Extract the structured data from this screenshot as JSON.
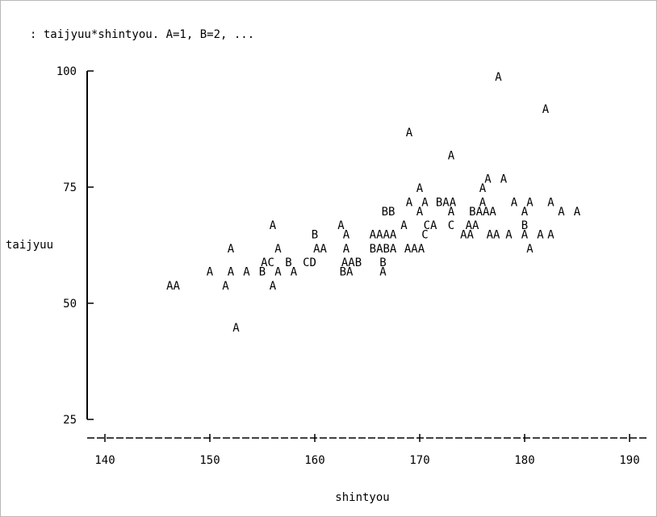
{
  "chart_data": {
    "type": "scatter",
    "title": ": taijyuu*shintyou. A=1, B=2, ...",
    "xlabel": "shintyou",
    "ylabel": "taijyuu",
    "xlim": [
      140,
      190
    ],
    "ylim": [
      25,
      100
    ],
    "x_ticks": [
      "140",
      "150",
      "160",
      "170",
      "180",
      "190"
    ],
    "y_ticks": [
      "100",
      "75",
      "50",
      "25"
    ],
    "legend": "A=1, B=2, ...",
    "grid": false,
    "plot_rows": [
      {
        "y": 99,
        "x": [
          177.5
        ],
        "labels": [
          "A"
        ]
      },
      {
        "y": 92,
        "x": [
          182.0
        ],
        "labels": [
          "A"
        ]
      },
      {
        "y": 87,
        "x": [
          169.0
        ],
        "labels": [
          "A"
        ]
      },
      {
        "y": 82,
        "x": [
          173.0
        ],
        "labels": [
          "A"
        ]
      },
      {
        "y": 77,
        "x": [
          176.5,
          178.0
        ],
        "labels": [
          "A",
          "A"
        ]
      },
      {
        "y": 75,
        "x": [
          170.0,
          176.0
        ],
        "labels": [
          "A",
          "A"
        ]
      },
      {
        "y": 72,
        "x": [
          169.0,
          170.5,
          172.5,
          176.0,
          179.0,
          180.5,
          182.5
        ],
        "labels": [
          "A",
          "A",
          "BAA",
          "A",
          "A",
          "A",
          "A"
        ]
      },
      {
        "y": 70,
        "x": [
          167.0,
          170.0,
          173.0,
          176.0,
          180.0,
          183.5,
          185.0
        ],
        "labels": [
          "BB",
          "A",
          "A",
          "BAAA",
          "A",
          "A",
          "A"
        ]
      },
      {
        "y": 67,
        "x": [
          156.0,
          162.5,
          168.5,
          171.0,
          173.0,
          175.0,
          180.0
        ],
        "labels": [
          "A",
          "A",
          "A",
          "CA",
          "C",
          "AA",
          "B"
        ]
      },
      {
        "y": 65,
        "x": [
          160.0,
          163.0,
          166.5,
          170.5,
          174.5,
          177.0,
          178.5,
          180.0,
          181.5,
          182.5
        ],
        "labels": [
          "B",
          "A",
          "AAAA",
          "C",
          "AA",
          "AA",
          "A",
          "A",
          "A",
          "A"
        ]
      },
      {
        "y": 62,
        "x": [
          152.0,
          156.5,
          160.5,
          163.0,
          166.5,
          169.5,
          180.5
        ],
        "labels": [
          "A",
          "A",
          "AA",
          "A",
          "BABA",
          "AAA",
          "A"
        ]
      },
      {
        "y": 59,
        "x": [
          155.5,
          157.5,
          159.5,
          163.5,
          166.5
        ],
        "labels": [
          "AC",
          "B",
          "CD",
          "AAB",
          "B"
        ]
      },
      {
        "y": 57,
        "x": [
          150.0,
          152.0,
          153.5,
          155.0,
          156.5,
          158.0,
          163.0,
          166.5
        ],
        "labels": [
          "A",
          "A",
          "A",
          "B",
          "A",
          "A",
          "BA",
          "A"
        ]
      },
      {
        "y": 54,
        "x": [
          146.5,
          151.5,
          156.0
        ],
        "labels": [
          "AA",
          "A",
          "A"
        ]
      },
      {
        "y": 45,
        "x": [
          152.5
        ],
        "labels": [
          "A"
        ]
      }
    ]
  }
}
